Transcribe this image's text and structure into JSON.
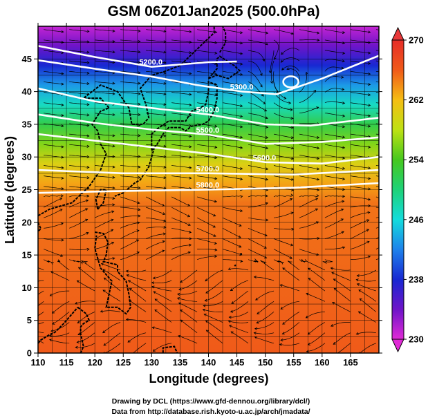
{
  "chart_data": {
    "type": "heatmap",
    "title": "GSM 06Z01Jan2025 (500.0hPa)",
    "xlabel": "Longitude (degrees)",
    "ylabel": "Latitude  (degrees)",
    "xlim": [
      110,
      170
    ],
    "ylim": [
      0,
      50
    ],
    "x_ticks": [
      110,
      115,
      120,
      125,
      130,
      135,
      140,
      145,
      150,
      155,
      160,
      165
    ],
    "y_ticks": [
      0,
      5,
      10,
      15,
      20,
      25,
      30,
      35,
      40,
      45
    ],
    "grid": true,
    "colorbar": {
      "min": 230,
      "max": 270,
      "ticks": [
        230,
        238,
        246,
        254,
        262,
        270
      ],
      "placement": "right"
    },
    "temperature_bands": [
      {
        "lat": 50,
        "value": 231
      },
      {
        "lat": 47,
        "value": 234
      },
      {
        "lat": 44,
        "value": 238
      },
      {
        "lat": 41,
        "value": 243
      },
      {
        "lat": 38,
        "value": 247
      },
      {
        "lat": 35,
        "value": 252
      },
      {
        "lat": 32,
        "value": 256
      },
      {
        "lat": 29,
        "value": 260
      },
      {
        "lat": 26,
        "value": 263
      },
      {
        "lat": 23,
        "value": 265
      },
      {
        "lat": 0,
        "value": 266
      }
    ],
    "height_contours": [
      {
        "label": "5200.0",
        "points": [
          [
            110,
            47
          ],
          [
            120,
            45.3
          ],
          [
            130,
            43.8
          ],
          [
            140,
            44.5
          ],
          [
            145,
            44.6
          ]
        ]
      },
      {
        "label": "5300.0",
        "points": [
          [
            110,
            44.8
          ],
          [
            120,
            43.5
          ],
          [
            130,
            42.3
          ],
          [
            138,
            41
          ],
          [
            146,
            40
          ],
          [
            152,
            39.6
          ],
          [
            160,
            42
          ],
          [
            170,
            45.5
          ]
        ]
      },
      {
        "label": "5400.0",
        "points": [
          [
            110,
            40.5
          ],
          [
            120,
            38.5
          ],
          [
            130,
            37.5
          ],
          [
            140,
            36.5
          ],
          [
            150,
            35
          ],
          [
            158,
            34.8
          ],
          [
            170,
            36
          ]
        ]
      },
      {
        "label": "5500.0",
        "points": [
          [
            110,
            36.5
          ],
          [
            120,
            35.2
          ],
          [
            130,
            34.2
          ],
          [
            140,
            33.4
          ],
          [
            150,
            32
          ],
          [
            160,
            32.3
          ],
          [
            170,
            33
          ]
        ]
      },
      {
        "label": "5600.0",
        "points": [
          [
            110,
            33.5
          ],
          [
            125,
            32
          ],
          [
            140,
            30.5
          ],
          [
            150,
            29.2
          ],
          [
            160,
            29
          ],
          [
            170,
            30
          ]
        ]
      },
      {
        "label": "5700.0",
        "points": [
          [
            110,
            28
          ],
          [
            125,
            27.5
          ],
          [
            140,
            27.5
          ],
          [
            155,
            27.3
          ],
          [
            170,
            28
          ]
        ]
      },
      {
        "label": "5800.0",
        "points": [
          [
            110,
            24.5
          ],
          [
            125,
            24.8
          ],
          [
            140,
            25
          ],
          [
            155,
            25.3
          ],
          [
            170,
            26
          ]
        ]
      }
    ],
    "closed_low": {
      "lon": 154.5,
      "lat": 41.5,
      "contour": "5200.0"
    },
    "credits": [
      "Drawing by DCL (https://www.gfd-dennou.org/library/dcl/)",
      "Data from http://database.rish.kyoto-u.ac.jp/arch/jmadata/"
    ]
  }
}
